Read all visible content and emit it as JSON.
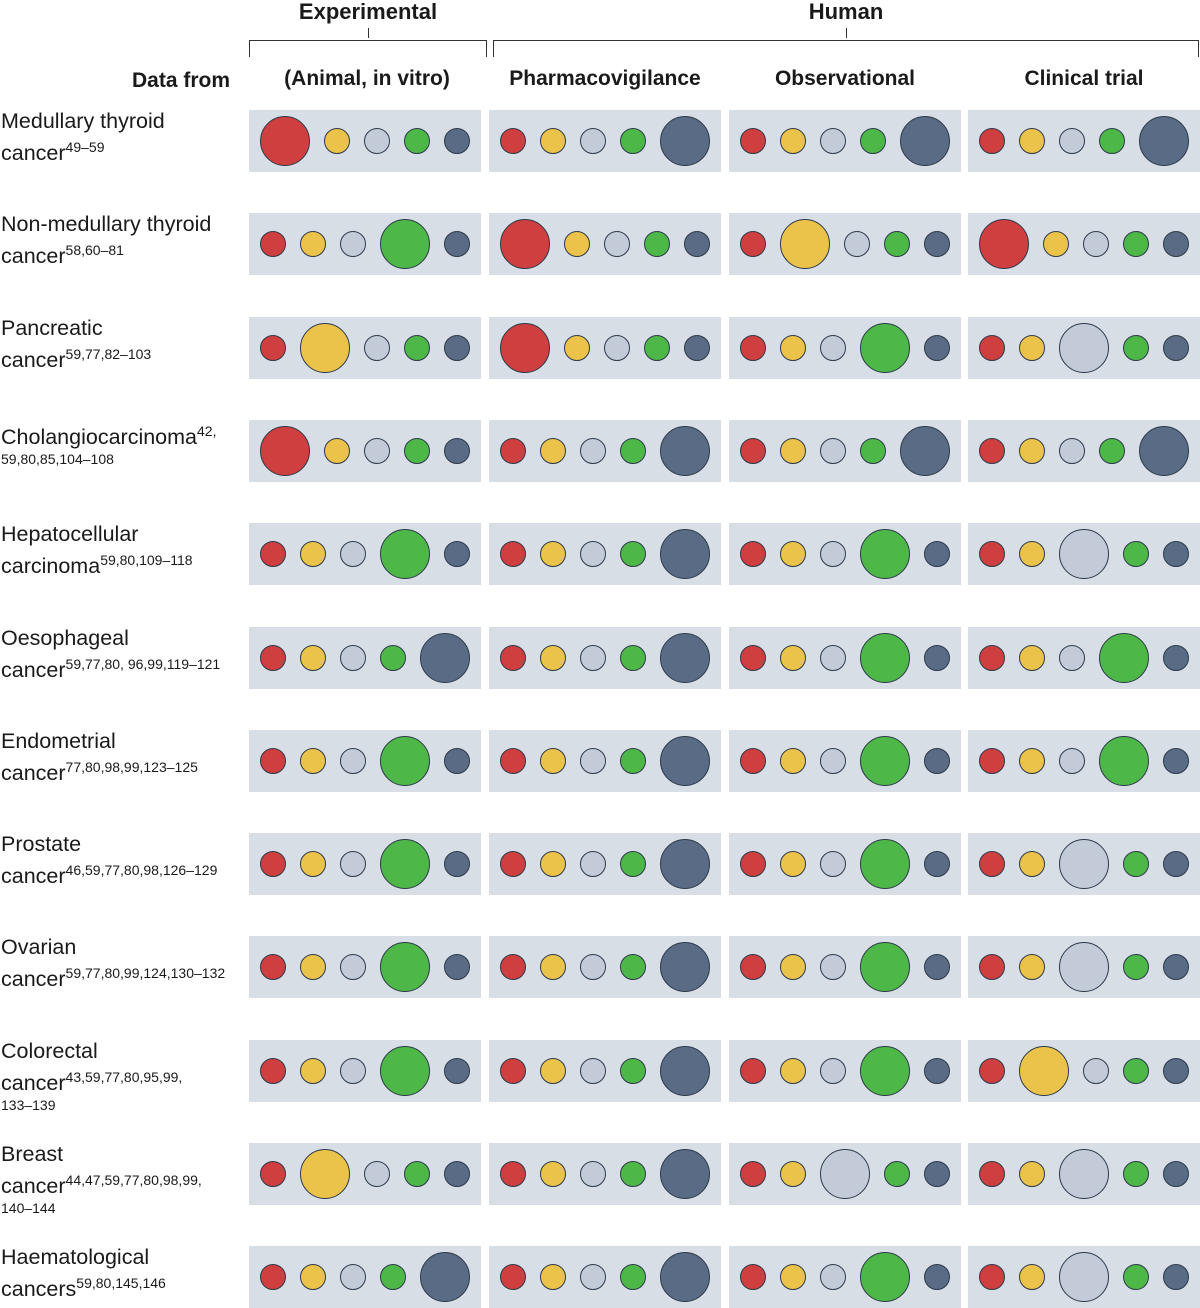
{
  "groups": {
    "experimental": "Experimental",
    "human": "Human"
  },
  "data_from": "Data from",
  "columns": [
    "(Animal, in vitro)",
    "Pharmacovigilance",
    "Observational",
    "Clinical trial"
  ],
  "colors": [
    "#cf3f3f",
    "#ecc34a",
    "#c3cbd8",
    "#4db748",
    "#5a6b86"
  ],
  "rows": [
    {
      "name": "Medullary thyroid",
      "name2": "cancer",
      "refs": "49–59",
      "refs2": "",
      "big": [
        0,
        4,
        4,
        4
      ]
    },
    {
      "name": "Non-medullary thyroid",
      "name2": "cancer",
      "refs": "58,60–81",
      "refs2": "",
      "big": [
        3,
        0,
        1,
        0
      ]
    },
    {
      "name": "Pancreatic",
      "name2": "cancer",
      "refs": "59,77,82–103",
      "refs2": "",
      "big": [
        1,
        0,
        3,
        2
      ]
    },
    {
      "name": "Cholangiocarcinoma",
      "name2": "",
      "refs": "42,",
      "refs2": "59,80,85,104–108",
      "big": [
        0,
        4,
        4,
        4
      ]
    },
    {
      "name": "Hepatocellular",
      "name2": "carcinoma",
      "refs": "59,80,109–118",
      "refs2": "",
      "big": [
        3,
        4,
        3,
        2
      ]
    },
    {
      "name": "Oesophageal",
      "name2": "cancer",
      "refs": "59,77,80, 96,99,119–121",
      "refs2": "",
      "big": [
        4,
        4,
        3,
        3
      ]
    },
    {
      "name": "Endometrial",
      "name2": "cancer",
      "refs": "77,80,98,99,123–125",
      "refs2": "",
      "big": [
        3,
        4,
        3,
        3
      ]
    },
    {
      "name": "Prostate",
      "name2": "cancer",
      "refs": "46,59,77,80,98,126–129",
      "refs2": "",
      "big": [
        3,
        4,
        3,
        2
      ]
    },
    {
      "name": "Ovarian",
      "name2": "cancer",
      "refs": "59,77,80,99,124,130–132",
      "refs2": "",
      "big": [
        3,
        4,
        3,
        2
      ]
    },
    {
      "name": "Colorectal",
      "name2": "cancer",
      "refs": "43,59,77,80,95,99,",
      "refs2": "133–139",
      "big": [
        3,
        4,
        3,
        1
      ]
    },
    {
      "name": "Breast",
      "name2": "cancer",
      "refs": "44,47,59,77,80,98,99,",
      "refs2": "140–144",
      "big": [
        1,
        4,
        2,
        2
      ]
    },
    {
      "name": "Haematological",
      "name2": "cancers",
      "refs": "59,80,145,146",
      "refs2": "",
      "big": [
        4,
        4,
        3,
        2
      ]
    }
  ]
}
